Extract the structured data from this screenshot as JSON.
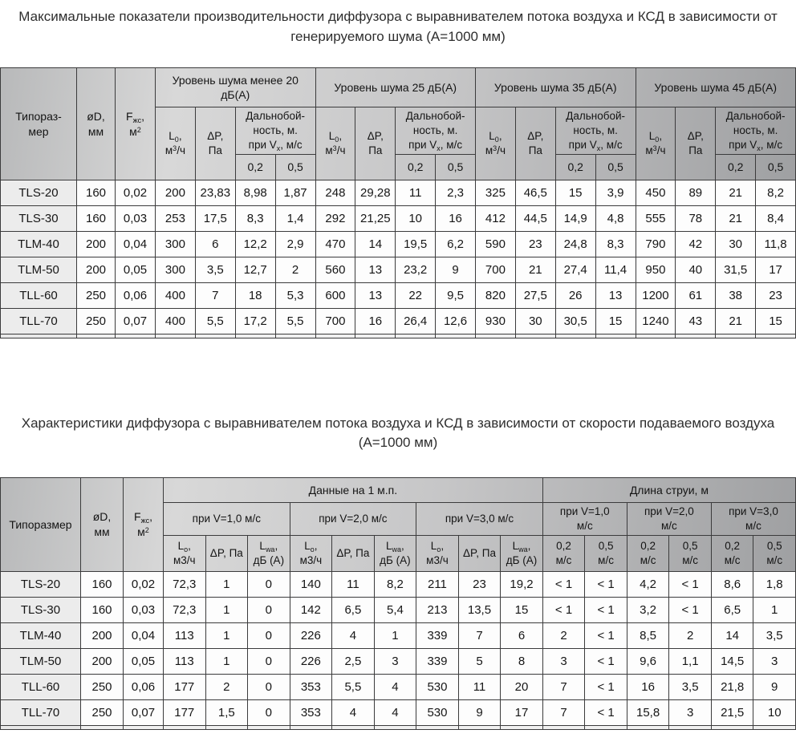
{
  "titles": {
    "noise_table_title": "Максимальные показатели производительности диффузора с выравнивателем потока воздуха и КСД в зависимости от генерируемого шума (А=1000 мм)",
    "velocity_table_title": "Характеристики диффузора с выравнивателем потока воздуха и КСД в зависимости от скорости подаваемого воздуха (А=1000 мм)"
  },
  "table1": {
    "fixed_cols": [
      {
        "html": "Типораз-<br>мер"
      },
      {
        "html": "øD,<br>мм"
      },
      {
        "html": "F<sub>жс</sub>,<br>м<sup>2</sup>"
      }
    ],
    "groups": [
      {
        "label": "Уровень шума менее 20 дБ(А)"
      },
      {
        "label": "Уровень шума 25 дБ(А)"
      },
      {
        "label": "Уровень шума 35 дБ(А)"
      },
      {
        "label": "Уровень шума 45 дБ(А)"
      }
    ],
    "sub": {
      "flow_html": "L<sub>0</sub>,<br>м<sup>3</sup>/ч",
      "dp_html": "ΔP,<br>Па",
      "range_html": "Дальнобой-<br>ность, м.<br>при V<sub>x</sub>, м/с",
      "v02": "0,2",
      "v05": "0,5"
    },
    "rows": [
      {
        "typesize": "TLS-20",
        "values": [
          "160",
          "0,02",
          "200",
          "23,83",
          "8,98",
          "1,87",
          "248",
          "29,28",
          "11",
          "2,3",
          "325",
          "46,5",
          "15",
          "3,9",
          "450",
          "89",
          "21",
          "8,2"
        ]
      },
      {
        "typesize": "TLS-30",
        "values": [
          "160",
          "0,03",
          "253",
          "17,5",
          "8,3",
          "1,4",
          "292",
          "21,25",
          "10",
          "16",
          "412",
          "44,5",
          "14,9",
          "4,8",
          "555",
          "78",
          "21",
          "8,4"
        ]
      },
      {
        "typesize": "TLM-40",
        "values": [
          "200",
          "0,04",
          "300",
          "6",
          "12,2",
          "2,9",
          "470",
          "14",
          "19,5",
          "6,2",
          "590",
          "23",
          "24,8",
          "8,3",
          "790",
          "42",
          "30",
          "11,8"
        ]
      },
      {
        "typesize": "TLM-50",
        "values": [
          "200",
          "0,05",
          "300",
          "3,5",
          "12,7",
          "2",
          "560",
          "13",
          "23,2",
          "9",
          "700",
          "21",
          "27,4",
          "11,4",
          "950",
          "40",
          "31,5",
          "17"
        ]
      },
      {
        "typesize": "TLL-60",
        "values": [
          "250",
          "0,06",
          "400",
          "7",
          "18",
          "5,3",
          "600",
          "13",
          "22",
          "9,5",
          "820",
          "27,5",
          "26",
          "13",
          "1200",
          "61",
          "38",
          "23"
        ]
      },
      {
        "typesize": "TLL-70",
        "values": [
          "250",
          "0,07",
          "400",
          "5,5",
          "17,2",
          "5,5",
          "700",
          "16",
          "26,4",
          "12,6",
          "930",
          "30",
          "30,5",
          "15",
          "1240",
          "43",
          "21",
          "15"
        ]
      }
    ]
  },
  "table2": {
    "fixed_cols": [
      {
        "html": "Типоразмер"
      },
      {
        "html": "øD,<br>мм"
      },
      {
        "html": "F<sub>жс</sub>,<br>м<sup>2</sup>"
      }
    ],
    "group_data_label": "Данные на 1 м.п.",
    "group_jet_label": "Длина струи, м",
    "speed_labels": [
      "при V=1,0 м/с",
      "при V=2,0 м/с",
      "при V=3,0 м/с"
    ],
    "jet_speed_labels_html": [
      "при V=1,0<br>м/с",
      "при V=2,0<br>м/с",
      "при V=3,0<br>м/с"
    ],
    "sub": {
      "flow_html": "L<sub>о</sub>,<br>м3/ч",
      "dp_label": "ΔP, Па",
      "lwa_html": "L<sub>wa</sub>,<br>дБ (А)",
      "v02_html": "0,2<br>м/с",
      "v05_html": "0,5<br>м/с"
    },
    "rows": [
      {
        "typesize": "TLS-20",
        "values": [
          "160",
          "0,02",
          "72,3",
          "1",
          "0",
          "140",
          "11",
          "8,2",
          "211",
          "23",
          "19,2",
          "< 1",
          "< 1",
          "4,2",
          "< 1",
          "8,6",
          "1,8"
        ]
      },
      {
        "typesize": "TLS-30",
        "values": [
          "160",
          "0,03",
          "72,3",
          "1",
          "0",
          "142",
          "6,5",
          "5,4",
          "213",
          "13,5",
          "15",
          "< 1",
          "< 1",
          "3,2",
          "< 1",
          "6,5",
          "1"
        ]
      },
      {
        "typesize": "TLM-40",
        "values": [
          "200",
          "0,04",
          "113",
          "1",
          "0",
          "226",
          "4",
          "1",
          "339",
          "7",
          "6",
          "2",
          "< 1",
          "8,5",
          "2",
          "14",
          "3,5"
        ]
      },
      {
        "typesize": "TLM-50",
        "values": [
          "200",
          "0,05",
          "113",
          "1",
          "0",
          "226",
          "2,5",
          "3",
          "339",
          "5",
          "8",
          "3",
          "< 1",
          "9,6",
          "1,1",
          "14,5",
          "3"
        ]
      },
      {
        "typesize": "TLL-60",
        "values": [
          "250",
          "0,06",
          "177",
          "2",
          "0",
          "353",
          "5,5",
          "4",
          "530",
          "11",
          "20",
          "7",
          "< 1",
          "16",
          "3,5",
          "21,8",
          "9"
        ]
      },
      {
        "typesize": "TLL-70",
        "values": [
          "250",
          "0,07",
          "177",
          "1,5",
          "0",
          "353",
          "4",
          "4",
          "530",
          "9",
          "17",
          "7",
          "< 1",
          "15,8",
          "3",
          "21,5",
          "10"
        ]
      }
    ]
  }
}
